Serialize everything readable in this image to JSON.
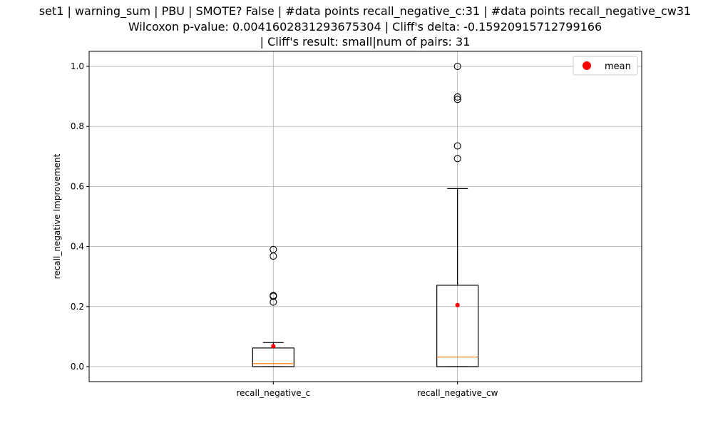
{
  "chart_data": {
    "type": "box",
    "title_lines": [
      "set1 | warning_sum | PBU | SMOTE? False | #data points recall_negative_c:31 | #data points recall_negative_cw31",
      "Wilcoxon p-value: 0.0041602831293675304 | Cliff's delta: -0.15920915712799166",
      "| Cliff's result: small|num of pairs: 31"
    ],
    "ylabel": "recall_negative Improvement",
    "ylim": [
      -0.05,
      1.05
    ],
    "yticks": [
      0.0,
      0.2,
      0.4,
      0.6,
      0.8,
      1.0
    ],
    "ytick_labels": [
      "0.0",
      "0.2",
      "0.4",
      "0.6",
      "0.8",
      "1.0"
    ],
    "grid": true,
    "legend": {
      "position": "top-right",
      "label": "mean",
      "color": "#ff0000"
    },
    "median_color": "#ff7f0e",
    "mean_color": "#ff0000",
    "boxes": [
      {
        "label": "recall_negative_c",
        "q1": 0.0,
        "median": 0.01,
        "q3": 0.062,
        "whisker_low": 0.0,
        "whisker_high": 0.08,
        "mean": 0.068,
        "outliers": [
          0.39,
          0.368,
          0.237,
          0.234,
          0.215
        ]
      },
      {
        "label": "recall_negative_cw",
        "q1": 0.0,
        "median": 0.032,
        "q3": 0.271,
        "whisker_low": 0.0,
        "whisker_high": 0.593,
        "mean": 0.205,
        "outliers": [
          1.0,
          0.898,
          0.89,
          0.735,
          0.693
        ]
      }
    ]
  }
}
